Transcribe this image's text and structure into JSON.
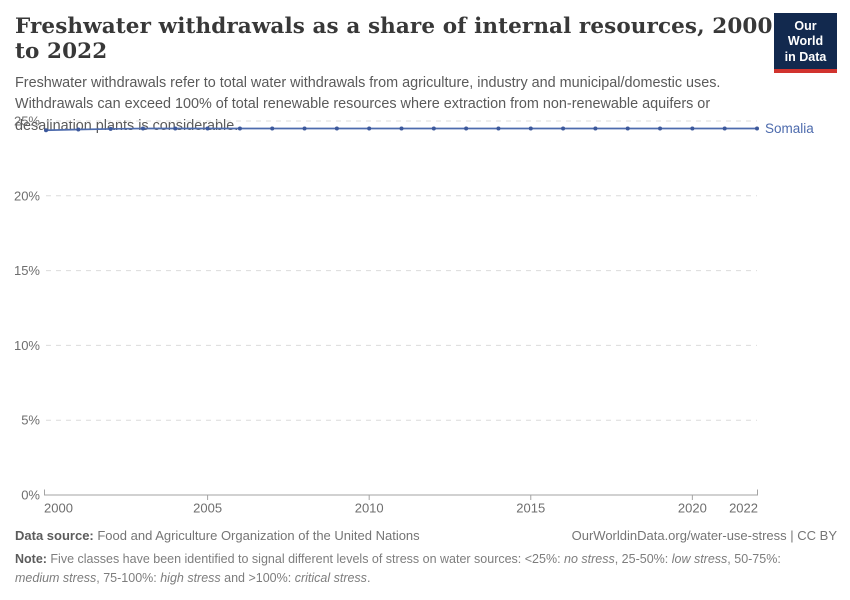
{
  "header": {
    "title": "Freshwater withdrawals as a share of internal resources, 2000 to 2022",
    "subtitle": "Freshwater withdrawals refer to total water withdrawals from agriculture, industry and municipal/domestic uses. Withdrawals can exceed 100% of total renewable resources where extraction from non-renewable aquifers or desalination plants is considerable.",
    "logo": {
      "line1": "Our World",
      "line2": "in Data"
    }
  },
  "chart_data": {
    "type": "line",
    "title": "Freshwater withdrawals as a share of internal resources, 2000 to 2022",
    "xlim": [
      2000,
      2022
    ],
    "ylim": [
      0,
      25
    ],
    "x_ticks": [
      2000,
      2005,
      2010,
      2015,
      2020,
      2022
    ],
    "y_ticks": [
      0,
      5,
      10,
      15,
      20,
      25
    ],
    "y_tick_suffix": "%",
    "grid": "horizontal-dashed",
    "legend_position": "end-of-line-label",
    "series": [
      {
        "name": "Somalia",
        "x": [
          2000,
          2001,
          2002,
          2003,
          2004,
          2005,
          2006,
          2007,
          2008,
          2009,
          2010,
          2011,
          2012,
          2013,
          2014,
          2015,
          2016,
          2017,
          2018,
          2019,
          2020,
          2021,
          2022
        ],
        "values": [
          24.38,
          24.43,
          24.47,
          24.5,
          24.5,
          24.5,
          24.5,
          24.5,
          24.5,
          24.5,
          24.5,
          24.5,
          24.5,
          24.5,
          24.5,
          24.5,
          24.5,
          24.5,
          24.5,
          24.5,
          24.5,
          24.5,
          24.5
        ]
      }
    ]
  },
  "colors": {
    "line": "#4d6bad",
    "dot": "#3c589b",
    "entity_label": "#4d6bad",
    "grid": "#dcdcdc",
    "axis": "#a3a3a3",
    "tick_label": "#6e6e6e",
    "logo_bg": "#12294e",
    "logo_bar": "#d1332e"
  },
  "footer": {
    "source_label": "Data source:",
    "source_text": " Food and Agriculture Organization of the United Nations",
    "link_text": "OurWorldinData.org/water-use-stress | CC BY",
    "note_parts": [
      {
        "t": "Note:",
        "s": "b"
      },
      {
        "t": " Five classes have been identified to signal different levels of stress on water sources: <25%: ",
        "s": "n"
      },
      {
        "t": "no stress",
        "s": "i"
      },
      {
        "t": ", 25-50%: ",
        "s": "n"
      },
      {
        "t": "low stress",
        "s": "i"
      },
      {
        "t": ", 50-75%: ",
        "s": "n"
      },
      {
        "t": "medium stress",
        "s": "i"
      },
      {
        "t": ", 75-100%: ",
        "s": "n"
      },
      {
        "t": "high stress",
        "s": "i"
      },
      {
        "t": " and >100%: ",
        "s": "n"
      },
      {
        "t": "critical stress",
        "s": "i"
      },
      {
        "t": ".",
        "s": "n"
      }
    ]
  }
}
